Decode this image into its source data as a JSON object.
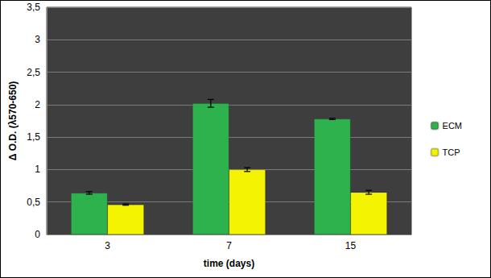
{
  "chart_data": {
    "type": "bar",
    "x_label": "time (days)",
    "y_label": "Δ O.D. (λ570-650)",
    "categories": [
      "3",
      "7",
      "15"
    ],
    "series": [
      {
        "name": "ECM",
        "color": "#2db24e",
        "values": [
          0.64,
          2.02,
          1.78
        ],
        "errors": [
          0.02,
          0.06,
          0.01
        ]
      },
      {
        "name": "TCP",
        "color": "#f4f400",
        "values": [
          0.46,
          1.0,
          0.65
        ],
        "errors": [
          0.01,
          0.03,
          0.03
        ]
      }
    ],
    "ylim": [
      0,
      3.5
    ],
    "yticks": [
      0,
      {
        "value": 0.5,
        "label": "0,5"
      },
      1,
      {
        "value": 1.5,
        "label": "1,5"
      },
      2,
      {
        "value": 2.5,
        "label": "2,5"
      },
      3,
      {
        "value": 3.5,
        "label": "3,5"
      }
    ],
    "grid": true,
    "legend": "right"
  }
}
